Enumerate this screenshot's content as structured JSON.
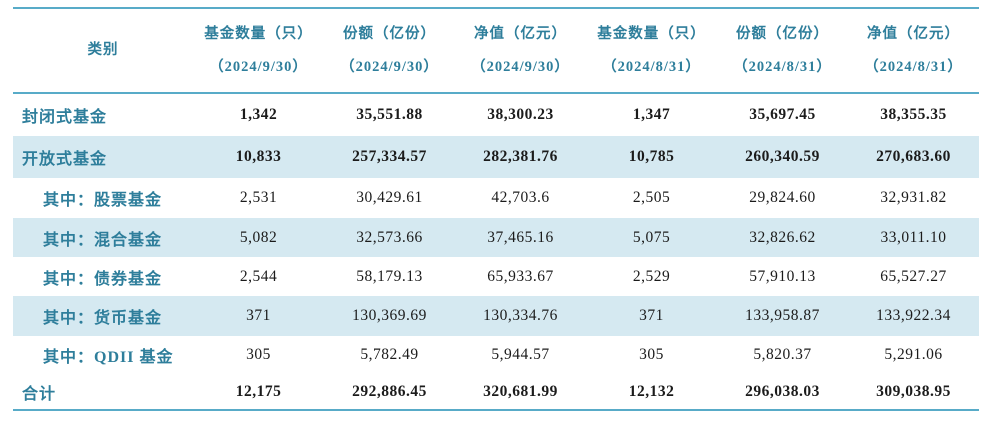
{
  "colors": {
    "accent_teal": "#2e7e9b",
    "row_shade": "#d5e9f1",
    "rule_line": "#58abc8",
    "number_text": "#1b1b1b"
  },
  "table": {
    "header": {
      "category_label": "类别",
      "columns": [
        {
          "label": "基金数量（只）",
          "date": "（2024/9/30）"
        },
        {
          "label": "份额（亿份）",
          "date": "（2024/9/30）"
        },
        {
          "label": "净值（亿元）",
          "date": "（2024/9/30）"
        },
        {
          "label": "基金数量（只）",
          "date": "（2024/8/31）"
        },
        {
          "label": "份额（亿份）",
          "date": "（2024/8/31）"
        },
        {
          "label": "净值（亿元）",
          "date": "（2024/8/31）"
        }
      ]
    },
    "rows": [
      {
        "label": "封闭式基金",
        "values": [
          "1,342",
          "35,551.88",
          "38,300.23",
          "1,347",
          "35,697.45",
          "38,355.35"
        ]
      },
      {
        "label": "开放式基金",
        "values": [
          "10,833",
          "257,334.57",
          "282,381.76",
          "10,785",
          "260,340.59",
          "270,683.60"
        ]
      },
      {
        "label": "其中：股票基金",
        "values": [
          "2,531",
          "30,429.61",
          "42,703.6",
          "2,505",
          "29,824.60",
          "32,931.82"
        ]
      },
      {
        "label": "其中：混合基金",
        "values": [
          "5,082",
          "32,573.66",
          "37,465.16",
          "5,075",
          "32,826.62",
          "33,011.10"
        ]
      },
      {
        "label": "其中：债券基金",
        "values": [
          "2,544",
          "58,179.13",
          "65,933.67",
          "2,529",
          "57,910.13",
          "65,527.27"
        ]
      },
      {
        "label": "其中：货币基金",
        "values": [
          "371",
          "130,369.69",
          "130,334.76",
          "371",
          "133,958.87",
          "133,922.34"
        ]
      },
      {
        "label": "其中：QDII 基金",
        "values": [
          "305",
          "5,782.49",
          "5,944.57",
          "305",
          "5,820.37",
          "5,291.06"
        ]
      },
      {
        "label": "合计",
        "values": [
          "12,175",
          "292,886.45",
          "320,681.99",
          "12,132",
          "296,038.03",
          "309,038.95"
        ]
      }
    ]
  }
}
